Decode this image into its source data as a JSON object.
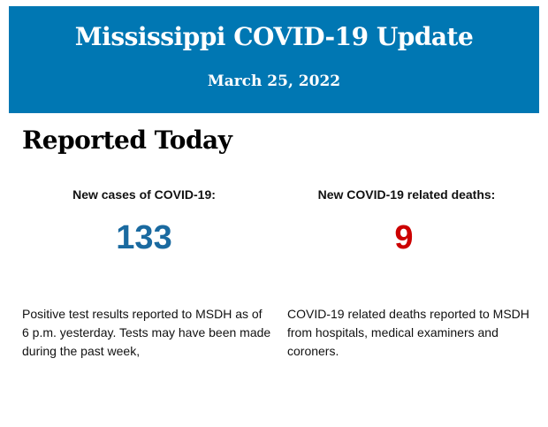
{
  "header": {
    "title": "Mississippi COVID-19 Update",
    "date": "March 25, 2022",
    "background_color": "#0077b3"
  },
  "section": {
    "title": "Reported Today"
  },
  "cases": {
    "label": "New cases of COVID-19:",
    "value": "133",
    "color": "#1a6aa0",
    "description": "Positive test results reported to MSDH as of 6 p.m. yesterday. Tests may have been made during the past week,"
  },
  "deaths": {
    "label": "New COVID-19 related deaths:",
    "value": "9",
    "color": "#cc0000",
    "description": "COVID-19 related deaths reported to MSDH from hospitals, medical examiners and coroners."
  }
}
